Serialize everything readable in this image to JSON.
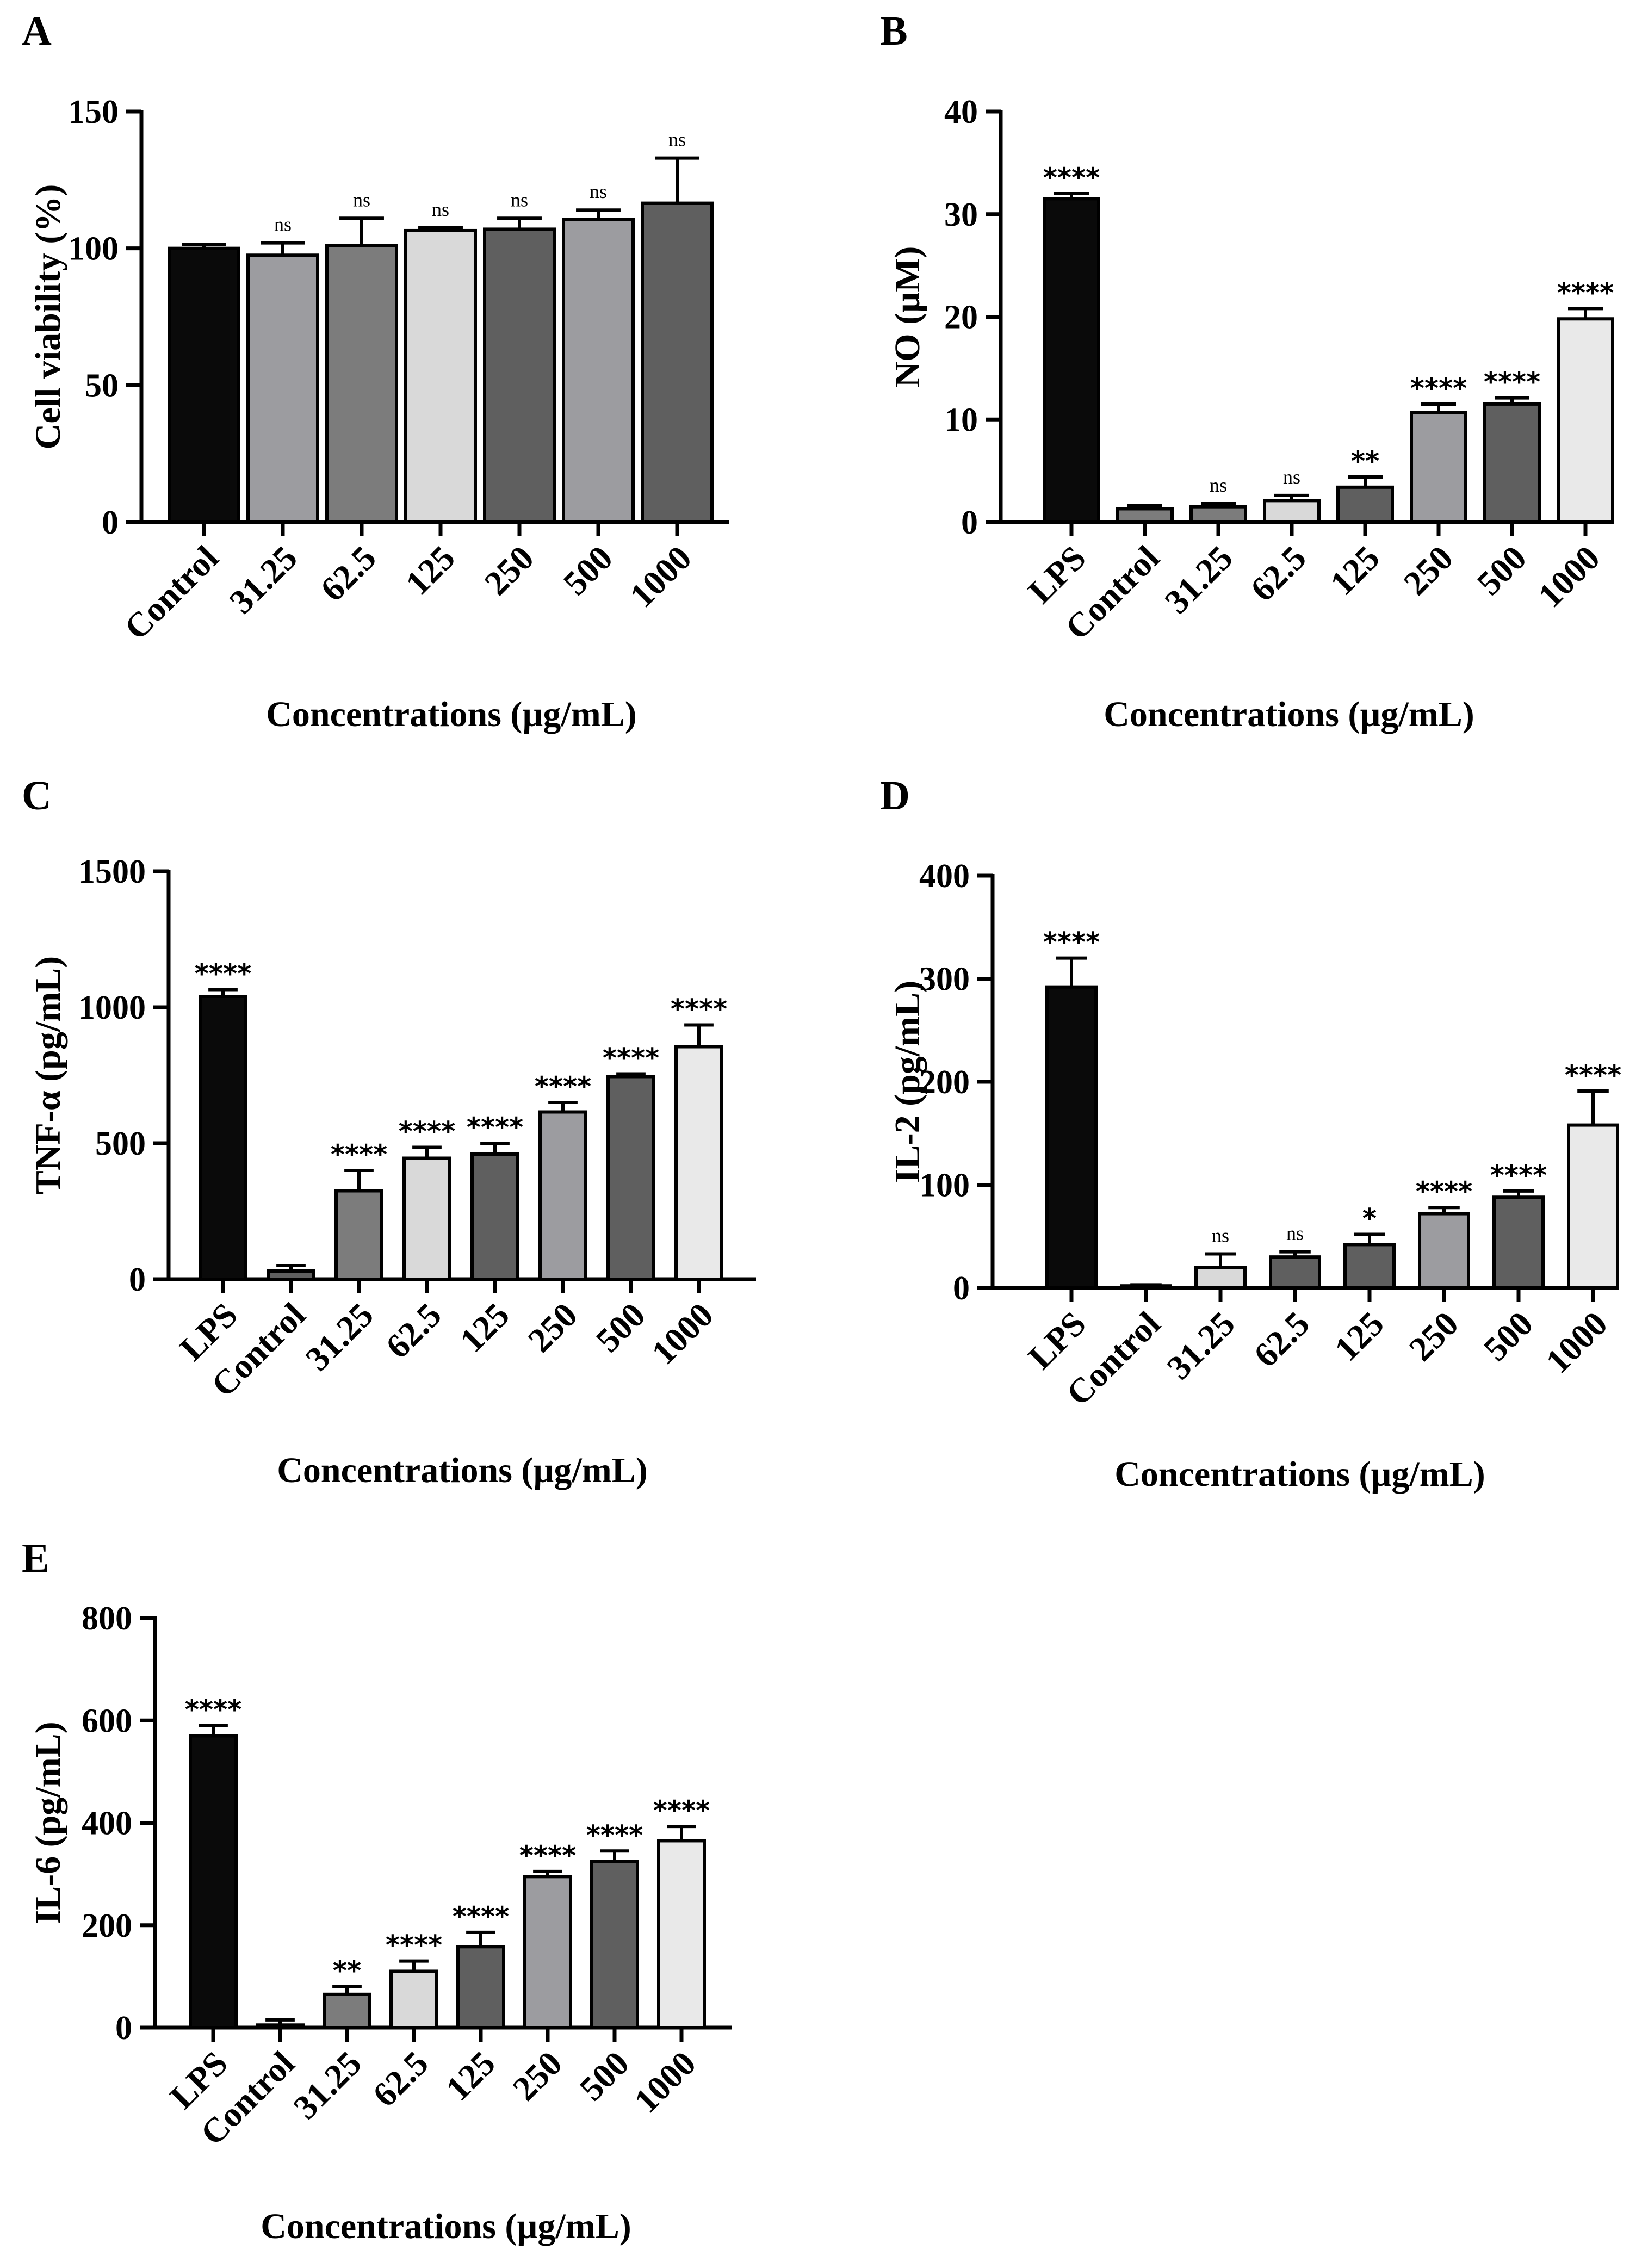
{
  "colors": {
    "black": "#0a0a0a",
    "dark_gray": "#5f5f5f",
    "mid_gray": "#7c7c7c",
    "light_gray": "#9c9ca0",
    "very_light": "#d9d9d9",
    "near_white": "#e9e9e9",
    "outline": "#000000"
  },
  "chart_data": [
    {
      "panel": "A",
      "type": "bar",
      "ylabel": "Cell viability (%)",
      "xlabel": "Concentrations (µg/mL)",
      "ylim": [
        0,
        150
      ],
      "yticks": [
        "0",
        "50",
        "100",
        "150"
      ],
      "categories": [
        "Control",
        "31.25",
        "62.5",
        "125",
        "250",
        "500",
        "1000"
      ],
      "values": [
        100,
        97.5,
        101,
        106.5,
        107,
        110.5,
        116.5
      ],
      "errors": [
        1.5,
        4.5,
        10,
        1,
        4,
        3.5,
        16.5
      ],
      "significance": [
        "",
        "ns",
        "ns",
        "ns",
        "ns",
        "ns",
        "ns"
      ],
      "fills": [
        "black",
        "light_gray",
        "mid_gray",
        "very_light",
        "dark_gray",
        "light_gray",
        "dark_gray"
      ]
    },
    {
      "panel": "B",
      "type": "bar",
      "ylabel": "NO (µM)",
      "xlabel": "Concentrations (µg/mL)",
      "ylim": [
        0,
        40
      ],
      "yticks": [
        "0",
        "10",
        "20",
        "30",
        "40"
      ],
      "categories": [
        "LPS",
        "Control",
        "31.25",
        "62.5",
        "125",
        "250",
        "500",
        "1000"
      ],
      "values": [
        31.5,
        1.3,
        1.5,
        2.1,
        3.4,
        10.7,
        11.5,
        19.8
      ],
      "errors": [
        0.5,
        0.3,
        0.3,
        0.5,
        1.0,
        0.8,
        0.6,
        1.0
      ],
      "significance": [
        "****",
        "",
        "ns",
        "ns",
        "**",
        "****",
        "****",
        "****"
      ],
      "fills": [
        "black",
        "mid_gray",
        "mid_gray",
        "very_light",
        "dark_gray",
        "light_gray",
        "dark_gray",
        "near_white"
      ]
    },
    {
      "panel": "C",
      "type": "bar",
      "ylabel": "TNF-α (pg/mL)",
      "xlabel": "Concentrations (µg/mL)",
      "ylim": [
        0,
        1500
      ],
      "yticks": [
        "0",
        "500",
        "1000",
        "1500"
      ],
      "categories": [
        "LPS",
        "Control",
        "31.25",
        "62.5",
        "125",
        "250",
        "500",
        "1000"
      ],
      "values": [
        1040,
        30,
        325,
        445,
        460,
        615,
        745,
        855
      ],
      "errors": [
        25,
        20,
        75,
        40,
        40,
        35,
        10,
        80
      ],
      "significance": [
        "****",
        "",
        "****",
        "****",
        "****",
        "****",
        "****",
        "****"
      ],
      "fills": [
        "black",
        "dark_gray",
        "mid_gray",
        "very_light",
        "dark_gray",
        "light_gray",
        "dark_gray",
        "near_white"
      ]
    },
    {
      "panel": "D",
      "type": "bar",
      "ylabel": "IL-2 (pg/mL)",
      "xlabel": "Concentrations (µg/mL)",
      "ylim": [
        0,
        400
      ],
      "yticks": [
        "0",
        "100",
        "200",
        "300",
        "400"
      ],
      "categories": [
        "LPS",
        "Control",
        "31.25",
        "62.5",
        "125",
        "250",
        "500",
        "1000"
      ],
      "values": [
        292,
        2,
        20,
        30,
        42,
        72,
        88,
        158
      ],
      "errors": [
        28,
        1,
        13,
        5,
        10,
        6,
        6,
        33
      ],
      "significance": [
        "****",
        "",
        "ns",
        "ns",
        "*",
        "****",
        "****",
        "****"
      ],
      "fills": [
        "black",
        "dark_gray",
        "very_light",
        "dark_gray",
        "dark_gray",
        "light_gray",
        "dark_gray",
        "near_white"
      ]
    },
    {
      "panel": "E",
      "type": "bar",
      "ylabel": "IL-6 (pg/mL)",
      "xlabel": "Concentrations (µg/mL)",
      "ylim": [
        0,
        800
      ],
      "yticks": [
        "0",
        "200",
        "400",
        "600",
        "800"
      ],
      "categories": [
        "LPS",
        "Control",
        "31.25",
        "62.5",
        "125",
        "250",
        "500",
        "1000"
      ],
      "values": [
        570,
        5,
        65,
        110,
        158,
        295,
        325,
        365
      ],
      "errors": [
        20,
        10,
        15,
        20,
        28,
        10,
        20,
        28
      ],
      "significance": [
        "****",
        "",
        "**",
        "****",
        "****",
        "****",
        "****",
        "****"
      ],
      "fills": [
        "black",
        "dark_gray",
        "mid_gray",
        "very_light",
        "dark_gray",
        "light_gray",
        "dark_gray",
        "near_white"
      ]
    }
  ]
}
